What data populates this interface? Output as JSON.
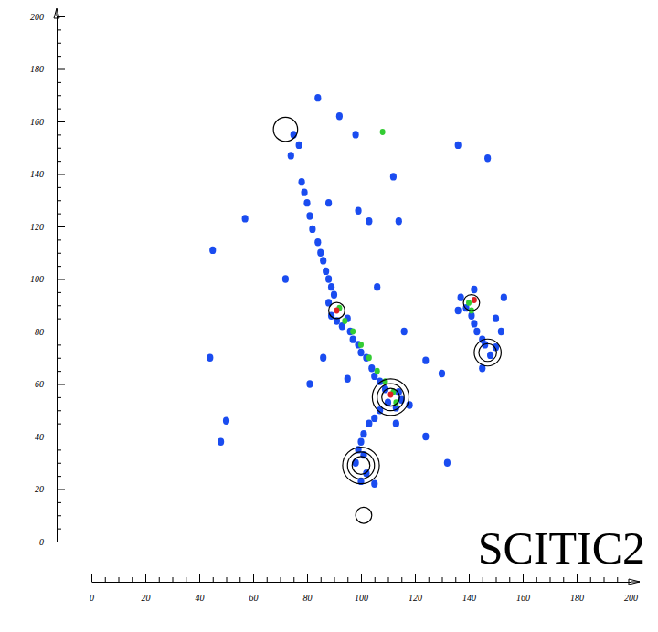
{
  "chart_data": {
    "type": "scatter",
    "annotations": [
      "SCITIC2"
    ],
    "xlim": [
      0,
      200
    ],
    "ylim": [
      0,
      200
    ],
    "xticks": [
      0,
      20,
      40,
      60,
      80,
      100,
      120,
      140,
      160,
      180,
      200
    ],
    "yticks": [
      0,
      20,
      40,
      60,
      80,
      100,
      120,
      140,
      160,
      180,
      200
    ],
    "xminorticks": [
      5,
      10,
      15,
      25,
      30,
      35,
      45,
      50,
      55,
      65,
      70,
      75,
      85,
      90,
      95,
      105,
      110,
      115,
      125,
      130,
      135,
      145,
      150,
      155,
      165,
      170,
      175,
      185,
      190,
      195
    ],
    "yminorticks": [
      5,
      10,
      15,
      25,
      30,
      35,
      45,
      50,
      55,
      65,
      70,
      75,
      85,
      90,
      95,
      105,
      110,
      115,
      125,
      130,
      135,
      145,
      150,
      155,
      165,
      170,
      175,
      185,
      190,
      195
    ],
    "series": [
      {
        "color": "#1a4cf0",
        "marker": "blob",
        "x": [
          75,
          77,
          74,
          78,
          79,
          80,
          81,
          82,
          84,
          85,
          86,
          87,
          88,
          89,
          90,
          88,
          89,
          91,
          93,
          95,
          96,
          97,
          99,
          100,
          102,
          104,
          105,
          107,
          109,
          110,
          113,
          114,
          115,
          107,
          105,
          103,
          101,
          100,
          99,
          101,
          98,
          102,
          100,
          105,
          45,
          44,
          57,
          50,
          48,
          72,
          84,
          92,
          98,
          136,
          147,
          112,
          99,
          114,
          103,
          88,
          106,
          116,
          124,
          130,
          124,
          132,
          81,
          86,
          137,
          139,
          141,
          142,
          143,
          145,
          146,
          148,
          150,
          152,
          153,
          136,
          145,
          142,
          150,
          118,
          95,
          113
        ],
        "values": [
          155,
          151,
          147,
          137,
          133,
          129,
          124,
          119,
          114,
          110,
          107,
          103,
          100,
          97,
          94,
          91,
          86,
          84,
          82,
          85,
          80,
          77,
          75,
          72,
          70,
          66,
          63,
          61,
          58,
          53,
          51,
          57,
          54,
          50,
          47,
          45,
          41,
          38,
          35,
          33,
          30,
          26,
          23,
          22,
          111,
          70,
          123,
          46,
          38,
          100,
          169,
          162,
          155,
          151,
          146,
          139,
          126,
          122,
          122,
          129,
          97,
          80,
          69,
          64,
          40,
          30,
          60,
          70,
          93,
          89,
          86,
          83,
          80,
          77,
          75,
          71,
          74,
          80,
          93,
          88,
          66,
          96,
          85,
          52,
          62,
          45
        ]
      },
      {
        "color": "#33cc33",
        "marker": "blob",
        "x": [
          92,
          94,
          97,
          100,
          103,
          106,
          109,
          112,
          108,
          140,
          113,
          141
        ],
        "values": [
          89,
          84,
          80,
          75,
          70,
          65,
          61,
          57,
          156,
          91,
          53,
          88
        ]
      },
      {
        "color": "#dd2222",
        "marker": "blob",
        "x": [
          91,
          111,
          142
        ],
        "values": [
          88,
          56,
          92
        ]
      },
      {
        "color": "#000000",
        "marker": "ring",
        "x": [
          72,
          91,
          111,
          111,
          111,
          100,
          100,
          100,
          101,
          141,
          147,
          147
        ],
        "values": [
          157,
          88,
          55,
          55,
          55,
          29,
          29,
          29,
          10,
          91,
          72,
          72
        ],
        "sizes": [
          4.5,
          3,
          3.3,
          5,
          6.8,
          3.3,
          5,
          6.8,
          3,
          3,
          3.3,
          5
        ]
      }
    ]
  }
}
